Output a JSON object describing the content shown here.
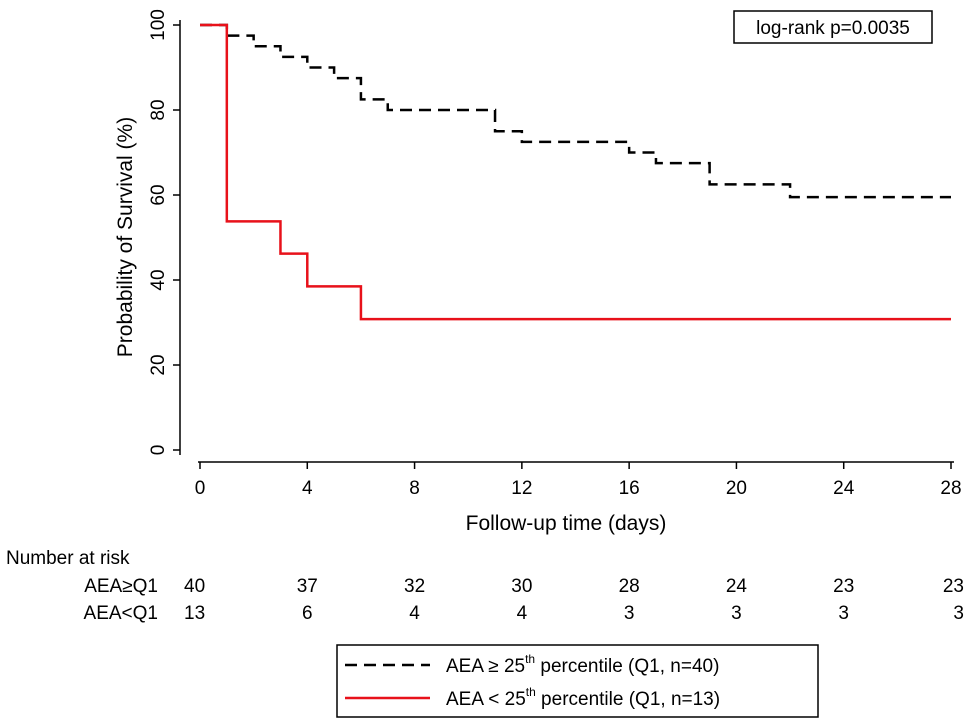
{
  "chart_data": {
    "type": "line",
    "subtype": "kaplan-meier",
    "xlabel": "Follow-up time (days)",
    "ylabel": "Probability of Survival (%)",
    "xlim": [
      0,
      28
    ],
    "ylim": [
      0,
      100
    ],
    "xticks": [
      0,
      4,
      8,
      12,
      16,
      20,
      24,
      28
    ],
    "yticks": [
      0,
      20,
      40,
      60,
      80,
      100
    ],
    "annotation": "log-rank p=0.0035",
    "series": [
      {
        "name": "AEA ≥ 25th percentile (Q1, n=40)",
        "color": "#000000",
        "style": "dashed",
        "steps": [
          [
            0,
            100
          ],
          [
            1,
            97.5
          ],
          [
            2,
            95
          ],
          [
            3,
            92.5
          ],
          [
            4,
            90
          ],
          [
            5,
            87.5
          ],
          [
            6,
            82.5
          ],
          [
            7,
            80
          ],
          [
            11,
            75
          ],
          [
            12,
            72.5
          ],
          [
            16,
            70
          ],
          [
            17,
            67.5
          ],
          [
            19,
            62.5
          ],
          [
            22,
            59.5
          ],
          [
            28,
            59.5
          ]
        ]
      },
      {
        "name": "AEA < 25th percentile (Q1, n=13)",
        "color": "#e8111a",
        "style": "solid",
        "steps": [
          [
            0,
            100
          ],
          [
            1,
            53.8
          ],
          [
            3,
            46.2
          ],
          [
            4,
            38.5
          ],
          [
            6,
            30.8
          ],
          [
            28,
            30.8
          ]
        ]
      }
    ],
    "risk_table": {
      "title": "Number at risk",
      "rows": [
        {
          "label": "AEA≥Q1",
          "values": [
            40,
            37,
            32,
            30,
            28,
            24,
            23,
            23
          ]
        },
        {
          "label": "AEA<Q1",
          "values": [
            13,
            6,
            4,
            4,
            3,
            3,
            3,
            3
          ]
        }
      ]
    },
    "legend": [
      {
        "prefix": "AEA ≥ 25",
        "sup": "th",
        "suffix": " percentile (Q1, n=40)"
      },
      {
        "prefix": "AEA < 25",
        "sup": "th",
        "suffix": " percentile (Q1, n=13)"
      }
    ]
  }
}
